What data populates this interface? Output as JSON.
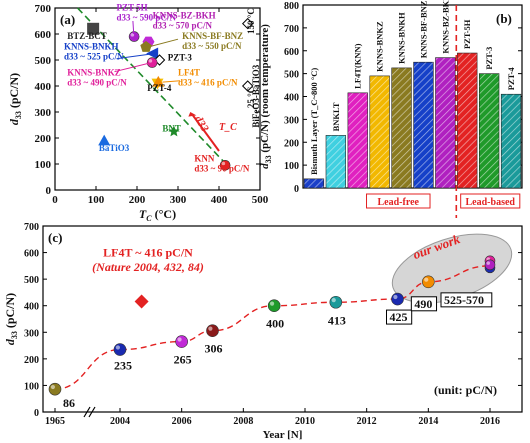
{
  "colors": {
    "bg": "#ffffff",
    "dash_red": "#e32222",
    "dash_green": "#1f8a2a",
    "lead_free_box": "#e32222",
    "lead_based_box": "#e32222",
    "our_work_ellipse": "#b0b0b0"
  },
  "chart_data": [
    {
      "panel": "(a)",
      "type": "scatter",
      "xlabel": "T_C (°C)",
      "ylabel": "d33 (pC/N)",
      "xlim": [
        0,
        500
      ],
      "ylim": [
        0,
        700
      ],
      "xticks": [
        0,
        100,
        200,
        300,
        400,
        500
      ],
      "yticks": [
        0,
        100,
        200,
        300,
        400,
        500,
        600,
        700
      ],
      "points": [
        {
          "name": "BTZ-BCT",
          "x": 93,
          "y": 620,
          "color": "#444444",
          "marker": "square",
          "label": "BTZ-BCT",
          "label_color": "#222222"
        },
        {
          "name": "PZT-5H",
          "x": 193,
          "y": 590,
          "color": "#aa22cc",
          "marker": "circle",
          "label": "PZT-5H\nd33 ~ 590 pC/N",
          "label_color": "#aa22cc"
        },
        {
          "name": "KNNS-BZ-BKH",
          "x": 228,
          "y": 570,
          "color": "#c02ad6",
          "marker": "hexagon",
          "label": "KNNS-BZ-BKH\nd33 ~ 570 pC/N",
          "label_color": "#b020b0"
        },
        {
          "name": "KNNS-BF-BNZ",
          "x": 222,
          "y": 550,
          "color": "#8a7a20",
          "marker": "pentagon",
          "label": "KNNS-BF-BNZ\nd33 ~ 550 pC/N",
          "label_color": "#8a7a20"
        },
        {
          "name": "KNNS-BNKH",
          "x": 237,
          "y": 525,
          "color": "#1540c8",
          "marker": "triangle-left",
          "label": "KNNS-BNKH\nd33 ~ 525 pC/N",
          "label_color": "#1540c8"
        },
        {
          "name": "PZT-3",
          "x": 255,
          "y": 500,
          "color": "#ffffff",
          "marker": "diamond-open",
          "label": "PZT-3",
          "label_color": "#111111"
        },
        {
          "name": "KNNS-BNKZ",
          "x": 237,
          "y": 490,
          "color": "#e0209a",
          "marker": "circle",
          "label": "KNNS-BNKZ\nd33 ~ 490 pC/N",
          "label_color": "#e0209a"
        },
        {
          "name": "PZT-4",
          "x": 250,
          "y": 410,
          "color": "#f5c000",
          "marker": "triangle-down",
          "label": "PZT-4",
          "label_color": "#111111"
        },
        {
          "name": "LF4T",
          "x": 252,
          "y": 416,
          "color": "#f28c00",
          "marker": "triangle-up",
          "label": "LF4T\nd33 ~ 416 pC/N",
          "label_color": "#f28c00"
        },
        {
          "name": "BNT",
          "x": 290,
          "y": 225,
          "color": "#1f8a2a",
          "marker": "star",
          "label": "BNT",
          "label_color": "#1f8a2a"
        },
        {
          "name": "BaTiO3",
          "x": 120,
          "y": 190,
          "color": "#1a6ae0",
          "marker": "triangle-up",
          "label": "BaTiO3",
          "label_color": "#1a6ae0"
        },
        {
          "name": "KNN",
          "x": 415,
          "y": 95,
          "color": "#e32222",
          "marker": "circle",
          "label": "KNN\nd33 ~ 90 pC/N",
          "label_color": "#e32222"
        },
        {
          "name": "25 °C BiFeO3-BaTiO3",
          "x": 470,
          "y": 400,
          "color": "#ffffff",
          "marker": "diamond-open",
          "label": "",
          "label_color": "#111111"
        },
        {
          "name": "150 °C",
          "x": 470,
          "y": 640,
          "color": "#ffffff",
          "marker": "diamond-open",
          "label": "",
          "label_color": "#111111"
        }
      ],
      "annotations": {
        "d33_arrow": "d33",
        "tc_arrow": "T_C",
        "bifeo3": "BiFeO3-BaTiO3",
        "c150": "150 °C",
        "c25": "25 °C"
      }
    },
    {
      "panel": "(b)",
      "type": "bar",
      "ylabel": "d33 (pC/N) (room temperature)",
      "ylim": [
        0,
        800
      ],
      "yticks": [
        0,
        100,
        200,
        300,
        400,
        500,
        600,
        700,
        800
      ],
      "categories": [
        "Bismuth Layer (T_C~800 °C)",
        "BNKLT",
        "LF4T(KNN)",
        "KNNS-BNKZ",
        "KNNS-BNKH",
        "KNNS-BF-BNZ",
        "KNNS-BZ-BKH",
        "PZT-5H",
        "PZT-3",
        "PZT-4"
      ],
      "values": [
        40,
        230,
        416,
        490,
        525,
        550,
        570,
        590,
        500,
        410
      ],
      "colors": [
        "#1a3fc8",
        "#3fd0e0",
        "#e020c0",
        "#f2b800",
        "#8a7a20",
        "#1540c8",
        "#b020c0",
        "#e32222",
        "#1f9a2a",
        "#1a9a9a"
      ],
      "groups": {
        "lead_free": "Lead-free",
        "lead_based": "Lead-based"
      }
    },
    {
      "panel": "(c)",
      "type": "scatter",
      "xlabel": "Year [N]",
      "ylabel": "d33 (pC/N)",
      "ylim": [
        0,
        700
      ],
      "yticks": [
        0,
        100,
        200,
        300,
        400,
        500,
        600,
        700
      ],
      "xticks": [
        "1965",
        "2004",
        "2006",
        "2008",
        "2010",
        "2012",
        "2014",
        "2016"
      ],
      "points": [
        {
          "year": "1965",
          "value": 86,
          "label": "86",
          "color": "#8a7a20"
        },
        {
          "year": "2004",
          "value": 235,
          "label": "235",
          "color": "#1a2ab0"
        },
        {
          "year": "2006",
          "value": 265,
          "label": "265",
          "color": "#c02ad6"
        },
        {
          "year": "2007",
          "value": 306,
          "label": "306",
          "color": "#8a1a1a"
        },
        {
          "year": "2009",
          "value": 400,
          "label": "400",
          "color": "#1f9a2a"
        },
        {
          "year": "2011",
          "value": 413,
          "label": "413",
          "color": "#1a9a9a"
        },
        {
          "year": "2013",
          "value": 425,
          "label": "425",
          "color": "#1a2ab0"
        },
        {
          "year": "2014",
          "value": 490,
          "label": "490",
          "color": "#f28c00"
        },
        {
          "year": "2016",
          "value": 550,
          "label": "525-570",
          "color": "#b020c0"
        }
      ],
      "lf4t": {
        "year": "2004.7",
        "value": 416,
        "label": "LF4T ~ 416 pC/N",
        "ref": "(Nature 2004, 432, 84)",
        "color": "#e32222"
      },
      "our_work": "our work",
      "unit_note": "(unit: pC/N)"
    }
  ]
}
